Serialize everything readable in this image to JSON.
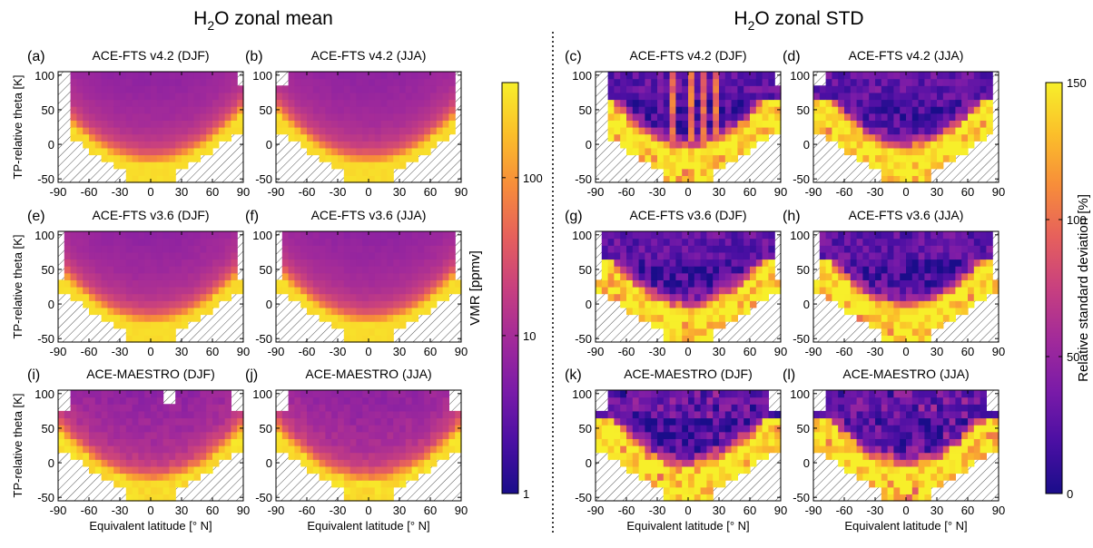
{
  "section_titles": {
    "left": {
      "main": "H",
      "sub": "2",
      "rest": "O zonal mean"
    },
    "right": {
      "main": "H",
      "sub": "2",
      "rest": "O zonal STD"
    }
  },
  "colors": {
    "colormap": [
      "#1a0d8a",
      "#4a0fa3",
      "#7a1ba8",
      "#a22a9a",
      "#c8407f",
      "#e6605c",
      "#f78d3a",
      "#fbbf2a",
      "#f7ef2a"
    ],
    "hatch": "#555555",
    "frame": "#000000"
  },
  "chart_data": [
    {
      "panel_label": "(a)",
      "title": "ACE-FTS v4.2 (DJF)",
      "kind": "mean",
      "season": "DJF",
      "variant": "fts42",
      "ylabel": "TP-relative theta [K]",
      "xlabel": ""
    },
    {
      "panel_label": "(b)",
      "title": "ACE-FTS v4.2 (JJA)",
      "kind": "mean",
      "season": "JJA",
      "variant": "fts42",
      "ylabel": "",
      "xlabel": ""
    },
    {
      "panel_label": "(c)",
      "title": "ACE-FTS v4.2 (DJF)",
      "kind": "std",
      "season": "DJF",
      "variant": "fts42",
      "ylabel": "",
      "xlabel": ""
    },
    {
      "panel_label": "(d)",
      "title": "ACE-FTS v4.2 (JJA)",
      "kind": "std",
      "season": "JJA",
      "variant": "fts42",
      "ylabel": "",
      "xlabel": ""
    },
    {
      "panel_label": "(e)",
      "title": "ACE-FTS v3.6 (DJF)",
      "kind": "mean",
      "season": "DJF",
      "variant": "fts36",
      "ylabel": "TP-relative theta [K]",
      "xlabel": ""
    },
    {
      "panel_label": "(f)",
      "title": "ACE-FTS v3.6 (JJA)",
      "kind": "mean",
      "season": "JJA",
      "variant": "fts36",
      "ylabel": "",
      "xlabel": ""
    },
    {
      "panel_label": "(g)",
      "title": "ACE-FTS v3.6 (DJF)",
      "kind": "std",
      "season": "DJF",
      "variant": "fts36",
      "ylabel": "",
      "xlabel": ""
    },
    {
      "panel_label": "(h)",
      "title": "ACE-FTS v3.6 (JJA)",
      "kind": "std",
      "season": "JJA",
      "variant": "fts36",
      "ylabel": "",
      "xlabel": ""
    },
    {
      "panel_label": "(i)",
      "title": "ACE-MAESTRO (DJF)",
      "kind": "mean",
      "season": "DJF",
      "variant": "maestro",
      "ylabel": "TP-relative theta [K]",
      "xlabel": "Equivalent latitude [° N]"
    },
    {
      "panel_label": "(j)",
      "title": "ACE-MAESTRO (JJA)",
      "kind": "mean",
      "season": "JJA",
      "variant": "maestro",
      "ylabel": "",
      "xlabel": "Equivalent latitude [° N]"
    },
    {
      "panel_label": "(k)",
      "title": "ACE-MAESTRO (DJF)",
      "kind": "std",
      "season": "DJF",
      "variant": "maestro",
      "ylabel": "",
      "xlabel": "Equivalent latitude [° N]"
    },
    {
      "panel_label": "(l)",
      "title": "ACE-MAESTRO (JJA)",
      "kind": "std",
      "season": "JJA",
      "variant": "maestro",
      "ylabel": "",
      "xlabel": "Equivalent latitude [° N]"
    }
  ],
  "axes": {
    "xlim": [
      -90,
      90
    ],
    "ylim": [
      -55,
      105
    ],
    "xticks": [
      "-90",
      "-60",
      "-30",
      "0",
      "30",
      "60",
      "90"
    ],
    "yticks": [
      "100",
      "50",
      "0",
      "-50"
    ],
    "grid": false
  },
  "colorbars": [
    {
      "type": "heatmap",
      "label": "VMR [ppmv]",
      "scale": "log",
      "range": [
        1,
        400
      ],
      "ticks": [
        "100",
        "10",
        "1"
      ]
    },
    {
      "type": "heatmap",
      "label": "Relative standard deviation [%]",
      "scale": "linear",
      "range": [
        0,
        150
      ],
      "ticks": [
        "150",
        "100",
        "50",
        "0"
      ]
    }
  ]
}
